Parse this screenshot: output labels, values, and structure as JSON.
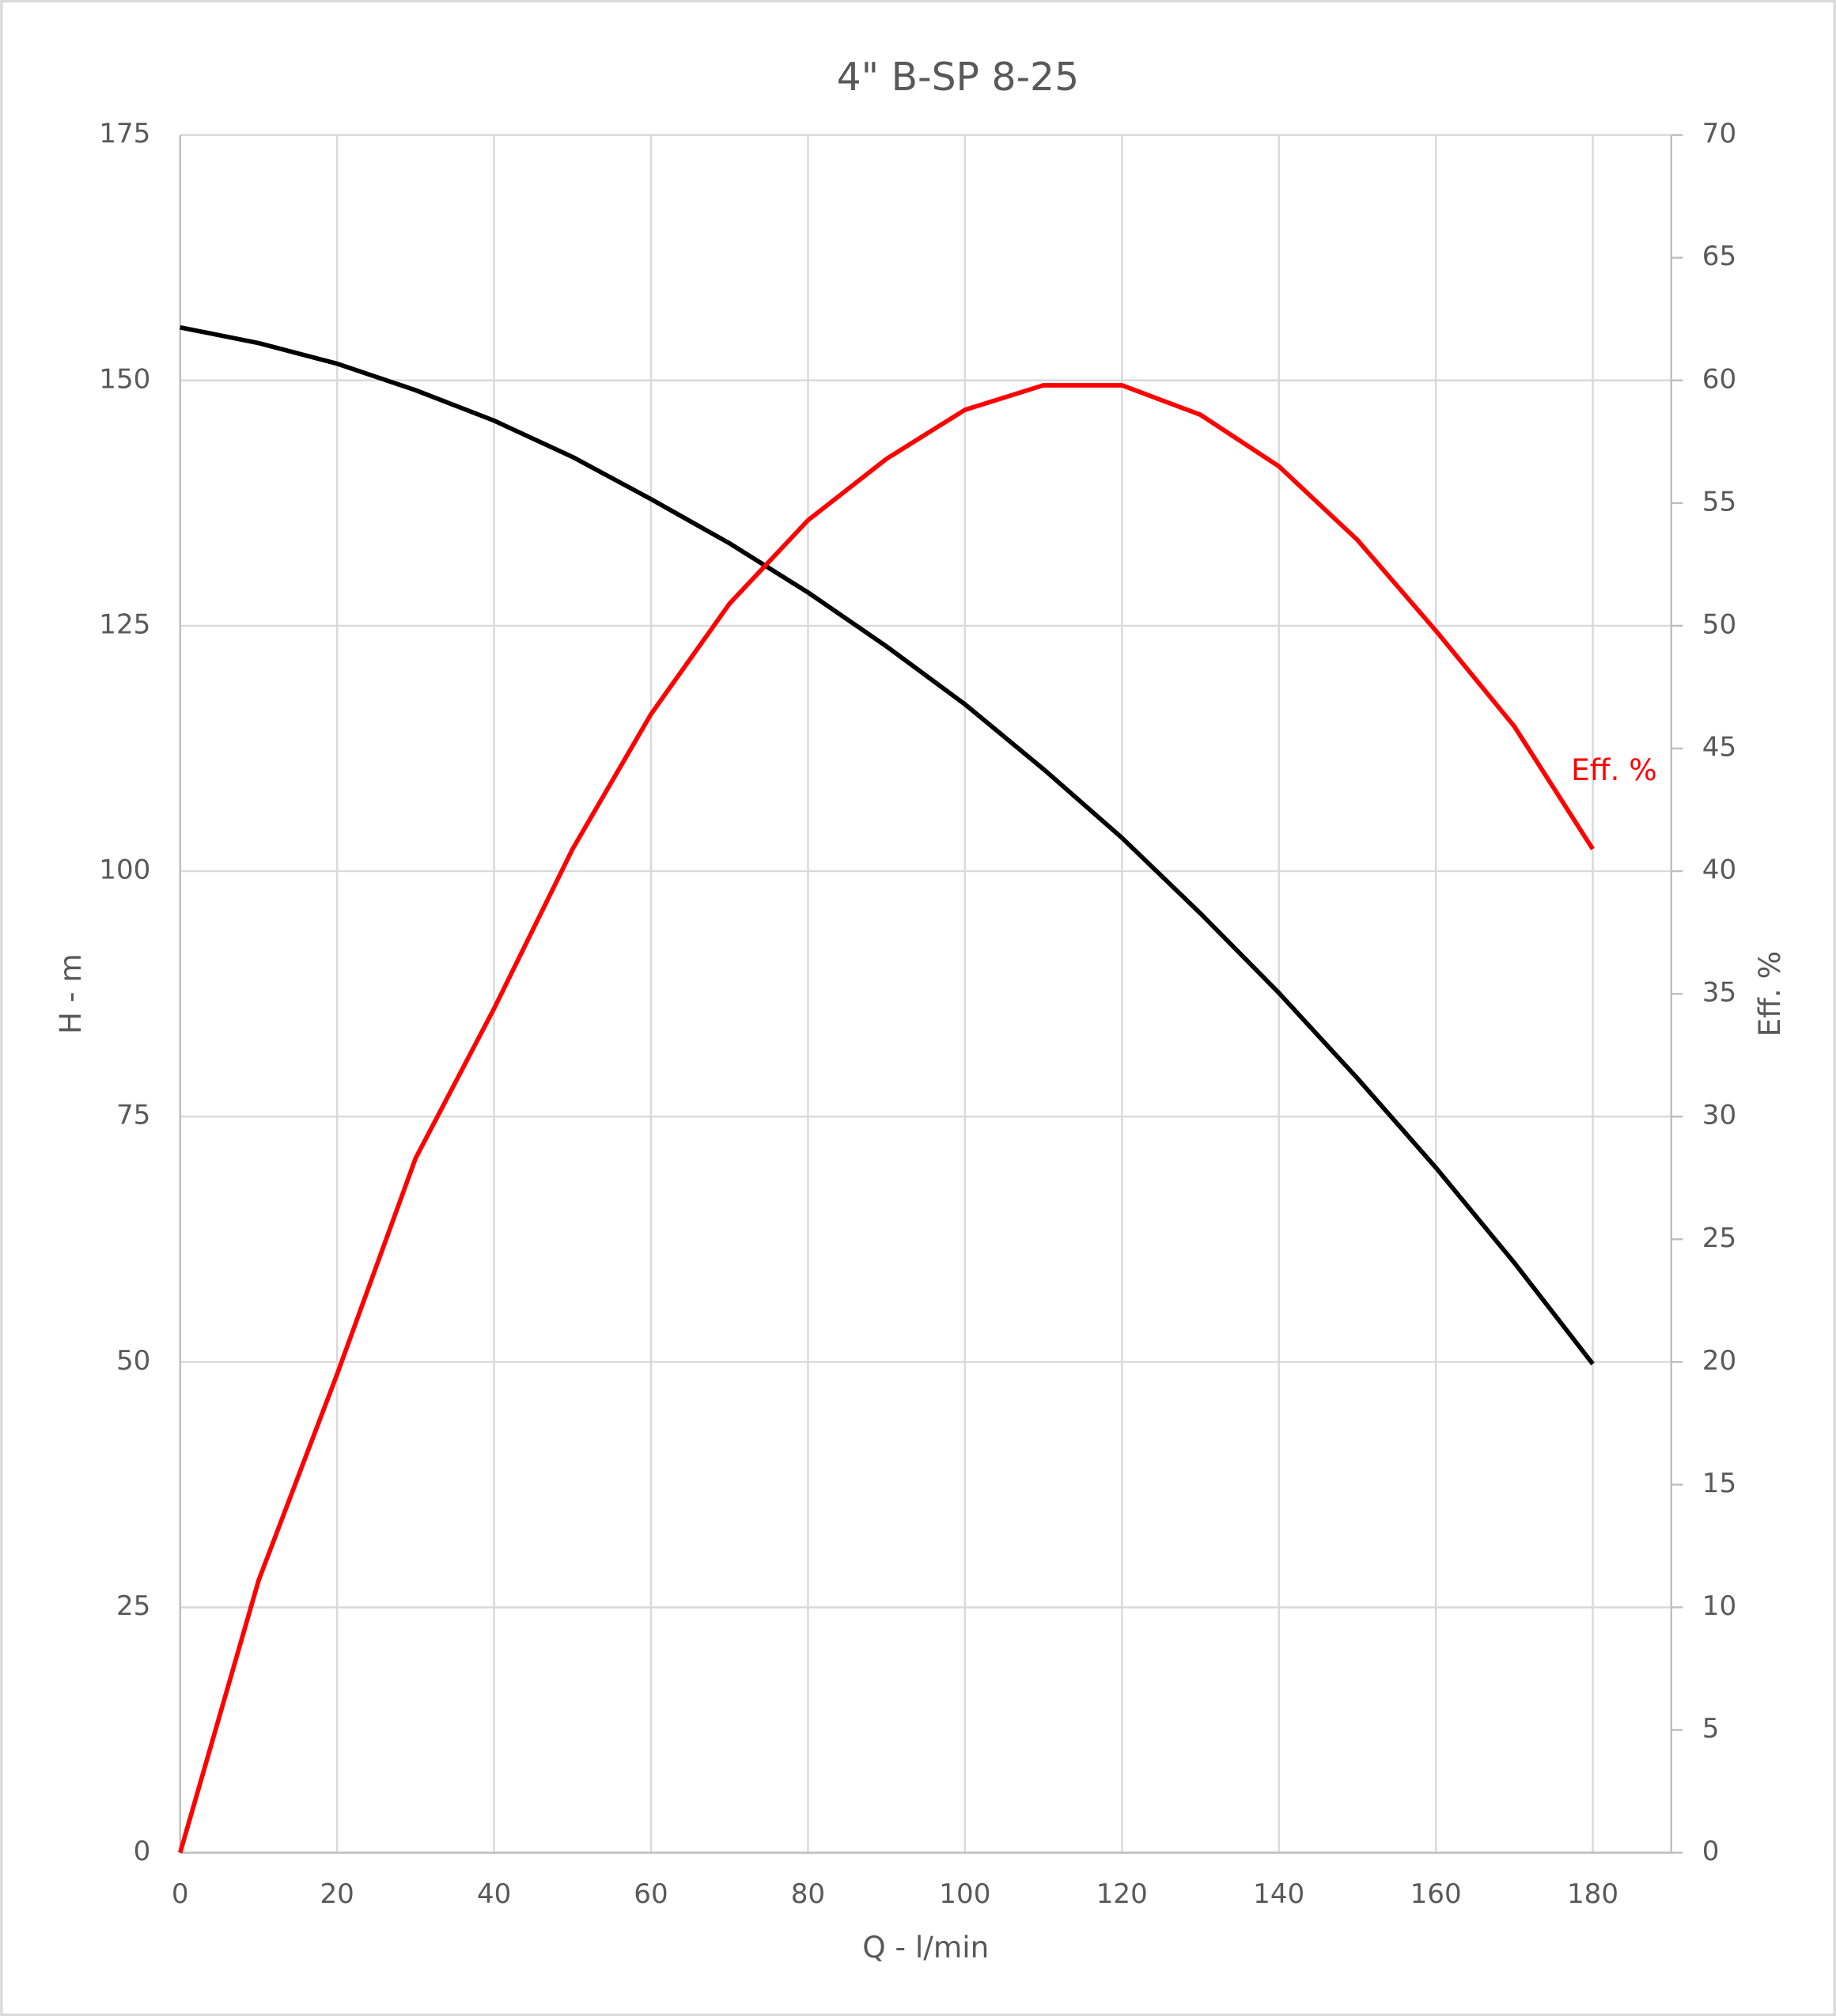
{
  "chart_data": {
    "type": "line",
    "title": "4\" B-SP 8-25",
    "x_label": "Q - l/min",
    "y_label": "H - m",
    "y2_label": "Eff. %",
    "x": [
      0,
      10,
      20,
      30,
      40,
      50,
      60,
      70,
      80,
      90,
      100,
      110,
      120,
      130,
      140,
      150,
      160,
      170,
      180
    ],
    "series": [
      {
        "color": "#000000",
        "values": [
          155.4,
          153.8,
          151.7,
          149.0,
          145.9,
          142.2,
          137.9,
          133.4,
          128.4,
          122.9,
          117.0,
          110.4,
          103.4,
          95.7,
          87.6,
          78.9,
          69.8,
          60.1,
          49.8
        ]
      },
      {
        "name": "Eff. %",
        "color": "#ff0000",
        "axis": "y2",
        "values": [
          0,
          11.1,
          19.5,
          28.3,
          34.4,
          40.9,
          46.4,
          50.9,
          54.3,
          56.8,
          58.8,
          59.8,
          59.8,
          58.6,
          56.5,
          53.5,
          49.8,
          45.9,
          40.9
        ]
      }
    ],
    "xlim": [
      0,
      190
    ],
    "xticks": [
      0,
      20,
      40,
      60,
      80,
      100,
      120,
      140,
      160,
      180
    ],
    "ylim": [
      0,
      175
    ],
    "yticks": [
      0,
      25,
      50,
      75,
      100,
      125,
      150,
      175
    ],
    "y2lim": [
      0,
      70
    ],
    "y2ticks": [
      0,
      5,
      10,
      15,
      20,
      25,
      30,
      35,
      40,
      45,
      50,
      55,
      60,
      65,
      70
    ],
    "grid": true
  }
}
